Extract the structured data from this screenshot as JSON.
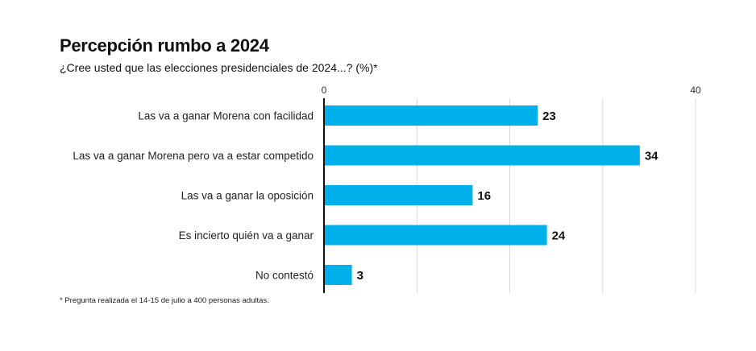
{
  "header": {
    "title": "Percepción rumbo a 2024",
    "subtitle": "¿Cree usted que las elecciones presidenciales de 2024...? (%)*"
  },
  "footnote": "* Pregunta realizada el 14-15 de julio a 400 personas adultas.",
  "colors": {
    "bar": "#00b0ea",
    "grid": "#d9d9d9",
    "axis": "#111111"
  },
  "chart_data": {
    "type": "bar",
    "orientation": "horizontal",
    "categories": [
      "Las va a ganar Morena con facilidad",
      "Las va a ganar Morena pero va a estar competido",
      "Las va a ganar la oposición",
      "Es incierto quién va a ganar",
      "No contestó"
    ],
    "values": [
      23,
      34,
      16,
      24,
      3
    ],
    "xlim": [
      0,
      40
    ],
    "tick_labels": [
      "0",
      "40"
    ],
    "grid": true,
    "data_labels": true
  }
}
